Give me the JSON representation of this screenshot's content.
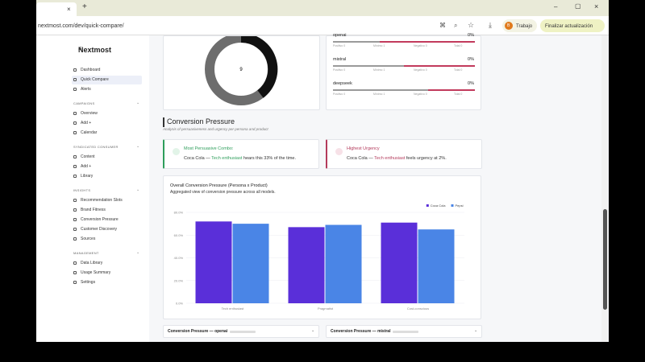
{
  "browser": {
    "url": "nextmost.com/dev/quick-compare/",
    "profile": "Trabajo",
    "profile_initial": "B",
    "update_button": "Finalizar actualización"
  },
  "sidebar": {
    "brand": "Nextmost",
    "sections": [
      {
        "title": null,
        "items": [
          "Dashboard",
          "Quick Compare",
          "Alerts"
        ]
      },
      {
        "title": "CAMPAIGNS",
        "items": [
          "Overview",
          "Add +",
          "Calendar"
        ]
      },
      {
        "title": "SYNDICATED CONSUMER",
        "items": [
          "Content",
          "Add +",
          "Library"
        ]
      },
      {
        "title": "INSIGHTS",
        "items": [
          "Recommendation Slots",
          "Brand Fitness",
          "Conversion Pressure",
          "Customer Discovery",
          "Sources"
        ]
      },
      {
        "title": "MANAGEMENT",
        "items": [
          "Data Library",
          "Usage Summary",
          "Settings"
        ]
      }
    ]
  },
  "donut": {
    "center_label": "9"
  },
  "models": [
    {
      "name": "openai",
      "percent": "0%",
      "stats": [
        "Positivo 0",
        "Mínimo 1",
        "Negativo 0",
        "Total 0"
      ]
    },
    {
      "name": "mistral",
      "percent": "0%",
      "stats": [
        "Positivo 0",
        "Mínimo 1",
        "Negativo 0",
        "Total 0"
      ]
    },
    {
      "name": "deepseek",
      "percent": "0%",
      "stats": [
        "Positivo 0",
        "Mínimo 1",
        "Negativo 0",
        "Total 0"
      ]
    }
  ],
  "section": {
    "title": "Conversion Pressure",
    "subtitle": "Analysis of persuasiveness and urgency per persona and product"
  },
  "cards": [
    {
      "title": "Most Persuasive Combo:",
      "before": "Coca Cola — ",
      "persona": "Tech enthusiast",
      "after": " hears this 33% of the time."
    },
    {
      "title": "Highest Urgency",
      "before": "Coca Cola — ",
      "persona": "Tech enthusiast",
      "after": " feels urgency at 2%."
    }
  ],
  "chart_data": {
    "type": "bar",
    "title": "Overall Conversion Pressure (Persona x Product)",
    "subtitle": "Aggregated view of conversion pressure across all models.",
    "categories": [
      "Tech enthusiast",
      "Pragmatist",
      "Cost-conscious"
    ],
    "series": [
      {
        "name": "Coca Cola",
        "color": "#5a2fd9",
        "values": [
          72,
          67,
          71
        ]
      },
      {
        "name": "Pepsi",
        "color": "#4a85e6",
        "values": [
          70,
          69,
          65
        ]
      }
    ],
    "ylim": [
      0,
      80
    ],
    "yticks": [
      {
        "value": 0,
        "label": "0.0%"
      },
      {
        "value": 20,
        "label": "20.0%"
      },
      {
        "value": 40,
        "label": "40.0%"
      },
      {
        "value": 60,
        "label": "60.0%"
      },
      {
        "value": 80,
        "label": "80.0%"
      }
    ],
    "grid": true,
    "legend": "top-right"
  },
  "bottom_panels": [
    "Conversion Pressure — openai",
    "Conversion Pressure — mistral"
  ]
}
